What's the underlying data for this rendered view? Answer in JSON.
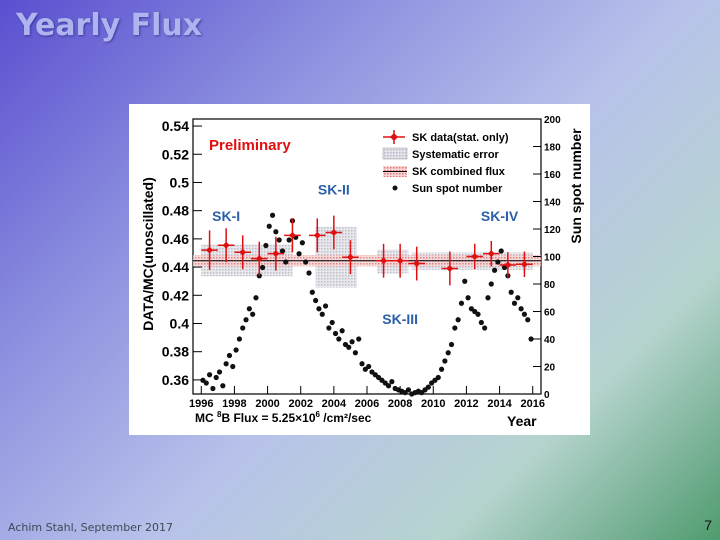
{
  "slide": {
    "title": "Yearly Flux",
    "footer": "Achim Stahl, September 2017",
    "page_number": "7"
  },
  "chart_data": {
    "type": "scatter",
    "title": "",
    "annotation_preliminary": "Preliminary",
    "phase_labels": [
      {
        "text": "SK-I",
        "year": 1997.5,
        "value": 0.4725
      },
      {
        "text": "SK-II",
        "year": 2004.0,
        "value": 0.4915
      },
      {
        "text": "SK-III",
        "year": 2008.0,
        "value": 0.3995
      },
      {
        "text": "SK-IV",
        "year": 2014.0,
        "value": 0.4725
      }
    ],
    "xlabel": "Year",
    "ylabel_left": "DATA/MC(unoscillated)",
    "ylabel_right": "Sun spot number",
    "flux_note": {
      "prefix": "MC  ",
      "sup1": "8",
      "middle": "B Flux = 5.25×10",
      "sup2": "6",
      "suffix": " /cm²/sec"
    },
    "xlim": [
      1995.5,
      2016.5
    ],
    "ylim_left": [
      0.35,
      0.545
    ],
    "ylim_right": [
      0,
      200
    ],
    "x_ticks": [
      "1996",
      "1998",
      "2000",
      "2002",
      "2004",
      "2006",
      "2008",
      "2010",
      "2012",
      "2014",
      "2016"
    ],
    "y_ticks_left": [
      "0.36",
      "0.38",
      "0.4",
      "0.42",
      "0.44",
      "0.46",
      "0.48",
      "0.5",
      "0.52",
      "0.54"
    ],
    "y_ticks_right": [
      "0",
      "20",
      "40",
      "60",
      "80",
      "100",
      "120",
      "140",
      "160",
      "180",
      "200"
    ],
    "legend": {
      "position": "top-right",
      "entries": [
        "SK data(stat. only)",
        "Systematic error",
        "SK combined flux",
        "Sun spot number"
      ]
    },
    "combined_flux": {
      "value": 0.4445,
      "band": [
        0.4405,
        0.4485
      ]
    },
    "sk_data": [
      {
        "year": 1996.5,
        "value": 0.452,
        "err": 0.014
      },
      {
        "year": 1997.5,
        "value": 0.4555,
        "err": 0.012
      },
      {
        "year": 1998.5,
        "value": 0.4505,
        "err": 0.012
      },
      {
        "year": 1999.5,
        "value": 0.446,
        "err": 0.012
      },
      {
        "year": 2000.5,
        "value": 0.4495,
        "err": 0.012
      },
      {
        "year": 2001.5,
        "value": 0.4625,
        "err": 0.012
      },
      {
        "year": 2003.0,
        "value": 0.4625,
        "err": 0.012
      },
      {
        "year": 2004.0,
        "value": 0.4645,
        "err": 0.012
      },
      {
        "year": 2005.0,
        "value": 0.447,
        "err": 0.012
      },
      {
        "year": 2007.0,
        "value": 0.4445,
        "err": 0.012
      },
      {
        "year": 2008.0,
        "value": 0.4445,
        "err": 0.012
      },
      {
        "year": 2009.0,
        "value": 0.4425,
        "err": 0.012
      },
      {
        "year": 2011.0,
        "value": 0.439,
        "err": 0.012
      },
      {
        "year": 2012.5,
        "value": 0.4475,
        "err": 0.009
      },
      {
        "year": 2013.5,
        "value": 0.4495,
        "err": 0.009
      },
      {
        "year": 2014.5,
        "value": 0.4415,
        "err": 0.009
      },
      {
        "year": 2015.5,
        "value": 0.442,
        "err": 0.009
      }
    ],
    "systematic_error": [
      {
        "x0": 1996.0,
        "x1": 2001.5,
        "y0": 0.4335,
        "y1": 0.456
      },
      {
        "x0": 2002.9,
        "x1": 2005.4,
        "y0": 0.4255,
        "y1": 0.4685
      },
      {
        "x0": 2006.6,
        "x1": 2008.5,
        "y0": 0.4355,
        "y1": 0.4525
      },
      {
        "x0": 2008.7,
        "x1": 2016.0,
        "y0": 0.438,
        "y1": 0.4505
      }
    ],
    "sunspots": [
      [
        1996.1,
        10
      ],
      [
        1996.3,
        8
      ],
      [
        1996.5,
        14
      ],
      [
        1996.7,
        4
      ],
      [
        1996.9,
        12
      ],
      [
        1997.1,
        16
      ],
      [
        1997.3,
        6
      ],
      [
        1997.5,
        22
      ],
      [
        1997.7,
        28
      ],
      [
        1997.9,
        20
      ],
      [
        1998.1,
        32
      ],
      [
        1998.3,
        40
      ],
      [
        1998.5,
        48
      ],
      [
        1998.7,
        54
      ],
      [
        1998.9,
        62
      ],
      [
        1999.1,
        58
      ],
      [
        1999.3,
        70
      ],
      [
        1999.5,
        86
      ],
      [
        1999.7,
        92
      ],
      [
        1999.9,
        108
      ],
      [
        2000.1,
        122
      ],
      [
        2000.3,
        130
      ],
      [
        2000.5,
        118
      ],
      [
        2000.7,
        112
      ],
      [
        2000.9,
        104
      ],
      [
        2001.1,
        96
      ],
      [
        2001.3,
        112
      ],
      [
        2001.5,
        126
      ],
      [
        2001.7,
        114
      ],
      [
        2001.9,
        102
      ],
      [
        2002.1,
        110
      ],
      [
        2002.3,
        96
      ],
      [
        2002.5,
        88
      ],
      [
        2002.7,
        74
      ],
      [
        2002.9,
        68
      ],
      [
        2003.1,
        62
      ],
      [
        2003.3,
        58
      ],
      [
        2003.5,
        64
      ],
      [
        2003.7,
        48
      ],
      [
        2003.9,
        52
      ],
      [
        2004.1,
        44
      ],
      [
        2004.3,
        40
      ],
      [
        2004.5,
        46
      ],
      [
        2004.7,
        36
      ],
      [
        2004.9,
        34
      ],
      [
        2005.1,
        38
      ],
      [
        2005.3,
        30
      ],
      [
        2005.5,
        40
      ],
      [
        2005.7,
        22
      ],
      [
        2005.9,
        18
      ],
      [
        2006.1,
        20
      ],
      [
        2006.3,
        16
      ],
      [
        2006.5,
        14
      ],
      [
        2006.7,
        12
      ],
      [
        2006.9,
        10
      ],
      [
        2007.1,
        8
      ],
      [
        2007.3,
        6
      ],
      [
        2007.5,
        9
      ],
      [
        2007.7,
        4
      ],
      [
        2007.9,
        3
      ],
      [
        2008.1,
        2
      ],
      [
        2008.3,
        1
      ],
      [
        2008.5,
        3
      ],
      [
        2008.7,
        0
      ],
      [
        2008.9,
        1
      ],
      [
        2009.1,
        2
      ],
      [
        2009.3,
        1
      ],
      [
        2009.5,
        3
      ],
      [
        2009.7,
        5
      ],
      [
        2009.9,
        8
      ],
      [
        2010.1,
        10
      ],
      [
        2010.3,
        12
      ],
      [
        2010.5,
        18
      ],
      [
        2010.7,
        24
      ],
      [
        2010.9,
        30
      ],
      [
        2011.1,
        36
      ],
      [
        2011.3,
        48
      ],
      [
        2011.5,
        54
      ],
      [
        2011.7,
        66
      ],
      [
        2011.9,
        82
      ],
      [
        2012.1,
        70
      ],
      [
        2012.3,
        62
      ],
      [
        2012.5,
        60
      ],
      [
        2012.7,
        58
      ],
      [
        2012.9,
        52
      ],
      [
        2013.1,
        48
      ],
      [
        2013.3,
        70
      ],
      [
        2013.5,
        80
      ],
      [
        2013.7,
        90
      ],
      [
        2013.9,
        96
      ],
      [
        2014.1,
        104
      ],
      [
        2014.3,
        92
      ],
      [
        2014.5,
        86
      ],
      [
        2014.7,
        74
      ],
      [
        2014.9,
        66
      ],
      [
        2015.1,
        70
      ],
      [
        2015.3,
        62
      ],
      [
        2015.5,
        58
      ],
      [
        2015.7,
        54
      ],
      [
        2015.9,
        40
      ]
    ],
    "colors": {
      "data": "#e01010",
      "phase_label": "#2b5fa8",
      "preliminary": "#e01010",
      "sunspot": "#111111",
      "systematic": "#c8c8d0"
    }
  }
}
